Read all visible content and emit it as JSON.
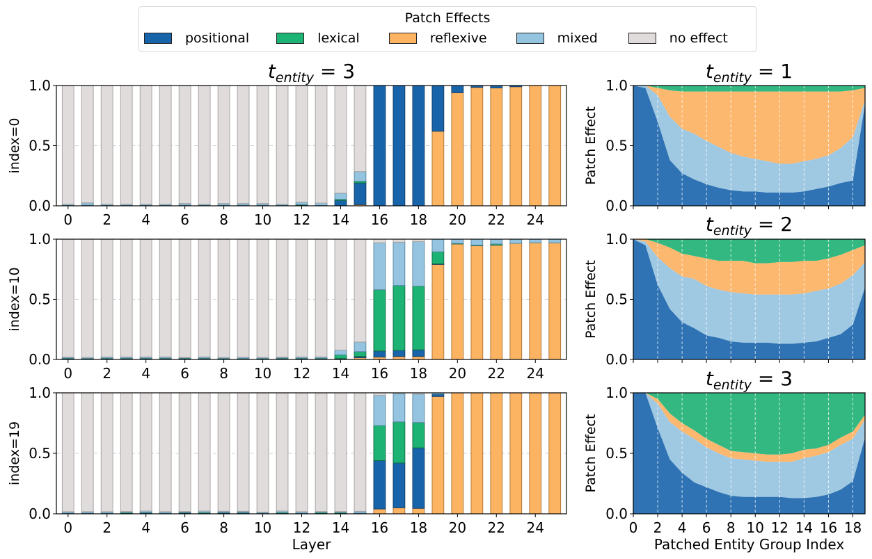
{
  "legend": {
    "title": "Patch Effects",
    "items": [
      {
        "key": "positional",
        "label": "positional",
        "color": "#1864aa"
      },
      {
        "key": "lexical",
        "label": "lexical",
        "color": "#1db374"
      },
      {
        "key": "reflexive",
        "label": "reflexive",
        "color": "#fdb462"
      },
      {
        "key": "mixed",
        "label": "mixed",
        "color": "#94c4df"
      },
      {
        "key": "no_effect",
        "label": "no effect",
        "color": "#e0dcdb"
      }
    ]
  },
  "chart_data": [
    {
      "type": "bar",
      "stacked": true,
      "title": "t_entity = 3",
      "title_main": "t",
      "title_sub": "entity",
      "title_rest": " = 3",
      "ylabel": "index=0",
      "xlabel": "",
      "ylim": [
        0,
        1
      ],
      "yticks": [
        "0.0",
        "0.5",
        "1.0"
      ],
      "xticks": [
        0,
        2,
        4,
        6,
        8,
        10,
        12,
        14,
        16,
        18,
        20,
        22,
        24
      ],
      "grid": "y-dashed-at-0.5",
      "categories": [
        0,
        1,
        2,
        3,
        4,
        5,
        6,
        7,
        8,
        9,
        10,
        11,
        12,
        13,
        14,
        15,
        16,
        17,
        18,
        19,
        20,
        21,
        22,
        23,
        24,
        25
      ],
      "series": [
        {
          "name": "reflexive",
          "values": [
            0,
            0,
            0,
            0,
            0,
            0,
            0,
            0,
            0,
            0,
            0,
            0,
            0,
            0,
            0,
            0.01,
            0,
            0,
            0,
            0.62,
            0.94,
            0.985,
            0.98,
            0.99,
            1.0,
            1.0
          ]
        },
        {
          "name": "positional",
          "values": [
            0.003,
            0.005,
            0.003,
            0.003,
            0.003,
            0.003,
            0.005,
            0.003,
            0.005,
            0.005,
            0.005,
            0.003,
            0.005,
            0.003,
            0.045,
            0.18,
            1.0,
            1.0,
            1.0,
            0.38,
            0.06,
            0.015,
            0.02,
            0.01,
            0,
            0
          ]
        },
        {
          "name": "lexical",
          "values": [
            0,
            0,
            0,
            0,
            0,
            0,
            0,
            0,
            0,
            0,
            0,
            0,
            0.005,
            0,
            0.01,
            0.015,
            0,
            0,
            0,
            0,
            0,
            0,
            0,
            0,
            0,
            0
          ]
        },
        {
          "name": "mixed",
          "values": [
            0.01,
            0.02,
            0.01,
            0.01,
            0.01,
            0.01,
            0.015,
            0.01,
            0.015,
            0.015,
            0.015,
            0.01,
            0.02,
            0.02,
            0.05,
            0.08,
            0,
            0,
            0,
            0,
            0,
            0,
            0,
            0,
            0,
            0
          ]
        },
        {
          "name": "no effect",
          "values": [
            0.987,
            0.975,
            0.987,
            0.987,
            0.987,
            0.987,
            0.98,
            0.987,
            0.98,
            0.98,
            0.98,
            0.987,
            0.97,
            0.977,
            0.895,
            0.715,
            0,
            0,
            0,
            0,
            0,
            0,
            0,
            0,
            0,
            0
          ]
        }
      ]
    },
    {
      "type": "bar",
      "stacked": true,
      "title": "",
      "ylabel": "index=10",
      "xlabel": "",
      "ylim": [
        0,
        1
      ],
      "yticks": [
        "0.0",
        "0.5",
        "1.0"
      ],
      "xticks": [
        0,
        2,
        4,
        6,
        8,
        10,
        12,
        14,
        16,
        18,
        20,
        22,
        24
      ],
      "grid": "y-dashed-at-0.5",
      "categories": [
        0,
        1,
        2,
        3,
        4,
        5,
        6,
        7,
        8,
        9,
        10,
        11,
        12,
        13,
        14,
        15,
        16,
        17,
        18,
        19,
        20,
        21,
        22,
        23,
        24,
        25
      ],
      "series": [
        {
          "name": "reflexive",
          "values": [
            0.005,
            0.003,
            0.005,
            0.005,
            0.005,
            0.005,
            0.005,
            0.005,
            0.003,
            0.003,
            0.003,
            0.005,
            0.005,
            0.005,
            0.005,
            0.015,
            0.02,
            0.025,
            0.025,
            0.79,
            0.96,
            0.945,
            0.95,
            0.965,
            0.97,
            0.97
          ]
        },
        {
          "name": "positional",
          "values": [
            0.003,
            0.003,
            0.003,
            0.003,
            0.003,
            0.003,
            0.003,
            0.003,
            0.003,
            0.003,
            0.003,
            0.003,
            0.003,
            0.003,
            0.003,
            0.01,
            0.05,
            0.05,
            0.055,
            0.005,
            0,
            0,
            0,
            0,
            0,
            0
          ]
        },
        {
          "name": "lexical",
          "values": [
            0.003,
            0.003,
            0.003,
            0.003,
            0.003,
            0.003,
            0.003,
            0.003,
            0.003,
            0.003,
            0.003,
            0.003,
            0.003,
            0.003,
            0.03,
            0.04,
            0.51,
            0.54,
            0.53,
            0.1,
            0.005,
            0.005,
            0.01,
            0,
            0,
            0
          ]
        },
        {
          "name": "mixed",
          "values": [
            0.008,
            0.008,
            0.01,
            0.01,
            0.01,
            0.01,
            0.005,
            0.01,
            0.008,
            0.01,
            0.008,
            0.008,
            0.01,
            0.01,
            0.04,
            0.08,
            0.39,
            0.36,
            0.37,
            0.105,
            0.035,
            0.05,
            0.04,
            0.035,
            0.03,
            0.03
          ]
        },
        {
          "name": "no effect",
          "values": [
            0.981,
            0.983,
            0.979,
            0.979,
            0.979,
            0.979,
            0.984,
            0.979,
            0.983,
            0.981,
            0.983,
            0.981,
            0.979,
            0.979,
            0.922,
            0.855,
            0.03,
            0.025,
            0.02,
            0,
            0,
            0,
            0,
            0,
            0,
            0
          ]
        }
      ]
    },
    {
      "type": "bar",
      "stacked": true,
      "title": "",
      "ylabel": "index=19",
      "xlabel": "Layer",
      "ylim": [
        0,
        1
      ],
      "yticks": [
        "0.0",
        "0.5",
        "1.0"
      ],
      "xticks": [
        0,
        2,
        4,
        6,
        8,
        10,
        12,
        14,
        16,
        18,
        20,
        22,
        24
      ],
      "grid": "y-dashed-at-0.5",
      "categories": [
        0,
        1,
        2,
        3,
        4,
        5,
        6,
        7,
        8,
        9,
        10,
        11,
        12,
        13,
        14,
        15,
        16,
        17,
        18,
        19,
        20,
        21,
        22,
        23,
        24,
        25
      ],
      "series": [
        {
          "name": "reflexive",
          "values": [
            0,
            0,
            0,
            0,
            0,
            0,
            0.005,
            0,
            0.005,
            0,
            0,
            0,
            0,
            0,
            0,
            0,
            0.04,
            0.05,
            0.045,
            0.97,
            1.0,
            1.0,
            1.0,
            1.0,
            1.0,
            1.0
          ]
        },
        {
          "name": "positional",
          "values": [
            0.003,
            0.003,
            0.003,
            0.003,
            0.008,
            0.003,
            0.003,
            0.003,
            0.003,
            0.008,
            0.003,
            0.003,
            0.003,
            0.003,
            0.003,
            0.003,
            0.4,
            0.37,
            0.5,
            0.02,
            0,
            0,
            0,
            0,
            0,
            0
          ]
        },
        {
          "name": "lexical",
          "values": [
            0.003,
            0.003,
            0.003,
            0.008,
            0.003,
            0.003,
            0.003,
            0.008,
            0.003,
            0.003,
            0.003,
            0.008,
            0.003,
            0.008,
            0.008,
            0.003,
            0.29,
            0.34,
            0.21,
            0,
            0,
            0,
            0,
            0,
            0,
            0
          ]
        },
        {
          "name": "mixed",
          "values": [
            0.012,
            0.012,
            0.012,
            0.008,
            0.012,
            0.012,
            0.008,
            0.012,
            0.01,
            0.01,
            0.008,
            0.012,
            0.012,
            0.008,
            0.008,
            0.015,
            0.25,
            0.235,
            0.235,
            0.01,
            0,
            0,
            0,
            0,
            0,
            0
          ]
        },
        {
          "name": "no effect",
          "values": [
            0.982,
            0.982,
            0.982,
            0.981,
            0.977,
            0.982,
            0.981,
            0.977,
            0.979,
            0.979,
            0.986,
            0.977,
            0.982,
            0.981,
            0.981,
            0.979,
            0.02,
            0.005,
            0.01,
            0,
            0,
            0,
            0,
            0,
            0,
            0
          ]
        }
      ]
    },
    {
      "type": "area",
      "stacked": true,
      "title": "t_entity = 1",
      "title_main": "t",
      "title_sub": "entity",
      "title_rest": " = 1",
      "ylabel": "Patch Effect",
      "xlabel": "",
      "ylim": [
        0,
        1
      ],
      "xlim": [
        0,
        19
      ],
      "yticks": [
        "0.0",
        "0.5",
        "1.0"
      ],
      "xticks": [],
      "x_minor_ticks": [
        2,
        4,
        6,
        8,
        10,
        12,
        14,
        16,
        18
      ],
      "grid": "x-dashed",
      "x": [
        0,
        1,
        2,
        3,
        4,
        5,
        6,
        7,
        8,
        9,
        10,
        11,
        12,
        13,
        14,
        15,
        16,
        17,
        18,
        19
      ],
      "series": [
        {
          "name": "positional",
          "values": [
            1.0,
            0.98,
            0.7,
            0.38,
            0.27,
            0.22,
            0.18,
            0.15,
            0.13,
            0.12,
            0.12,
            0.11,
            0.11,
            0.11,
            0.12,
            0.14,
            0.16,
            0.19,
            0.21,
            0.85
          ]
        },
        {
          "name": "mixed",
          "values": [
            0,
            0.02,
            0.22,
            0.36,
            0.37,
            0.38,
            0.36,
            0.34,
            0.31,
            0.29,
            0.27,
            0.26,
            0.24,
            0.24,
            0.25,
            0.25,
            0.26,
            0.29,
            0.36,
            0.03
          ]
        },
        {
          "name": "reflexive",
          "values": [
            0,
            0,
            0.06,
            0.22,
            0.31,
            0.35,
            0.41,
            0.46,
            0.51,
            0.54,
            0.56,
            0.58,
            0.6,
            0.6,
            0.58,
            0.56,
            0.53,
            0.47,
            0.39,
            0.1
          ]
        },
        {
          "name": "lexical",
          "values": [
            0,
            0,
            0.02,
            0.04,
            0.05,
            0.05,
            0.05,
            0.05,
            0.05,
            0.05,
            0.05,
            0.05,
            0.05,
            0.05,
            0.05,
            0.05,
            0.05,
            0.05,
            0.04,
            0.02
          ]
        }
      ]
    },
    {
      "type": "area",
      "stacked": true,
      "title": "t_entity = 2",
      "title_main": "t",
      "title_sub": "entity",
      "title_rest": " = 2",
      "ylabel": "Patch Effect",
      "xlabel": "",
      "ylim": [
        0,
        1
      ],
      "xlim": [
        0,
        19
      ],
      "yticks": [
        "0.0",
        "0.5",
        "1.0"
      ],
      "xticks": [],
      "x_minor_ticks": [
        2,
        4,
        6,
        8,
        10,
        12,
        14,
        16,
        18
      ],
      "grid": "x-dashed",
      "x": [
        0,
        1,
        2,
        3,
        4,
        5,
        6,
        7,
        8,
        9,
        10,
        11,
        12,
        13,
        14,
        15,
        16,
        17,
        18,
        19
      ],
      "series": [
        {
          "name": "positional",
          "values": [
            1.0,
            0.95,
            0.62,
            0.42,
            0.31,
            0.26,
            0.2,
            0.18,
            0.15,
            0.14,
            0.14,
            0.14,
            0.13,
            0.13,
            0.14,
            0.15,
            0.18,
            0.21,
            0.29,
            0.6
          ]
        },
        {
          "name": "mixed",
          "values": [
            0,
            0.03,
            0.23,
            0.34,
            0.38,
            0.41,
            0.41,
            0.4,
            0.41,
            0.41,
            0.4,
            0.4,
            0.41,
            0.41,
            0.41,
            0.42,
            0.41,
            0.42,
            0.41,
            0.21
          ]
        },
        {
          "name": "reflexive",
          "values": [
            0,
            0.02,
            0.12,
            0.17,
            0.19,
            0.19,
            0.23,
            0.24,
            0.26,
            0.27,
            0.26,
            0.26,
            0.27,
            0.27,
            0.27,
            0.25,
            0.25,
            0.24,
            0.21,
            0.14
          ]
        },
        {
          "name": "lexical",
          "values": [
            0,
            0,
            0.03,
            0.07,
            0.12,
            0.14,
            0.16,
            0.18,
            0.18,
            0.18,
            0.2,
            0.2,
            0.19,
            0.19,
            0.18,
            0.18,
            0.16,
            0.13,
            0.09,
            0.05
          ]
        }
      ]
    },
    {
      "type": "area",
      "stacked": true,
      "title": "t_entity = 3",
      "title_main": "t",
      "title_sub": "entity",
      "title_rest": " = 3",
      "ylabel": "Patch Effect",
      "xlabel": "Patched Entity Group Index",
      "ylim": [
        0,
        1
      ],
      "xlim": [
        0,
        19
      ],
      "yticks": [
        "0.0",
        "0.5",
        "1.0"
      ],
      "xticks": [
        0,
        2,
        4,
        6,
        8,
        10,
        12,
        14,
        16,
        18
      ],
      "grid": "x-dashed",
      "x": [
        0,
        1,
        2,
        3,
        4,
        5,
        6,
        7,
        8,
        9,
        10,
        11,
        12,
        13,
        14,
        15,
        16,
        17,
        18,
        19
      ],
      "series": [
        {
          "name": "positional",
          "values": [
            1.0,
            1.0,
            0.71,
            0.45,
            0.34,
            0.26,
            0.22,
            0.18,
            0.15,
            0.14,
            0.14,
            0.14,
            0.14,
            0.13,
            0.13,
            0.14,
            0.16,
            0.2,
            0.27,
            0.63
          ]
        },
        {
          "name": "mixed",
          "values": [
            0,
            0,
            0.2,
            0.31,
            0.34,
            0.36,
            0.33,
            0.32,
            0.31,
            0.31,
            0.3,
            0.29,
            0.29,
            0.3,
            0.33,
            0.34,
            0.35,
            0.37,
            0.35,
            0.15
          ]
        },
        {
          "name": "reflexive",
          "values": [
            0,
            0,
            0.04,
            0.07,
            0.07,
            0.07,
            0.07,
            0.07,
            0.06,
            0.06,
            0.06,
            0.06,
            0.06,
            0.07,
            0.07,
            0.06,
            0.06,
            0.06,
            0.06,
            0.04
          ]
        },
        {
          "name": "lexical",
          "values": [
            0,
            0,
            0.05,
            0.17,
            0.25,
            0.31,
            0.38,
            0.43,
            0.48,
            0.49,
            0.5,
            0.51,
            0.51,
            0.5,
            0.47,
            0.46,
            0.43,
            0.37,
            0.32,
            0.18
          ]
        }
      ]
    }
  ]
}
